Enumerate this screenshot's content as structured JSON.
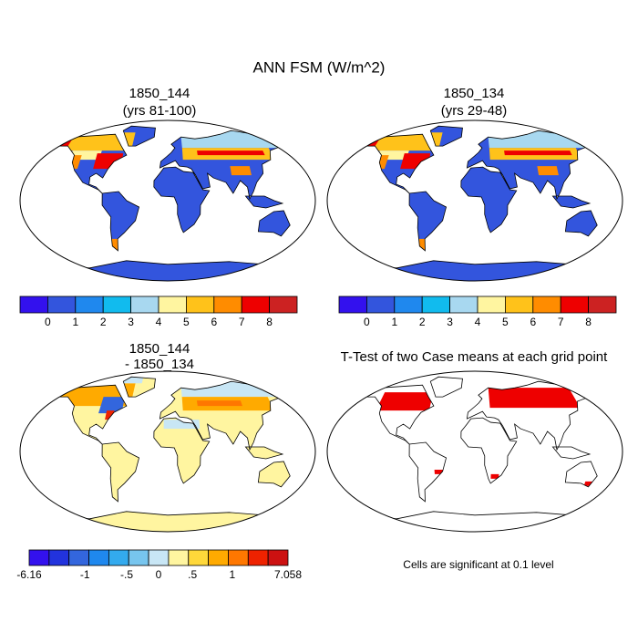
{
  "title": "ANN FSM (W/m^2)",
  "panels": [
    {
      "title": [
        "1850_144",
        "(yrs 81-100)"
      ],
      "style": "field",
      "colorbar": {
        "colors": [
          "#3311ee",
          "#3355dd",
          "#1f88ee",
          "#11bbee",
          "#a8d8f0",
          "#fff5a0",
          "#ffc21a",
          "#ff8c00",
          "#ee0000",
          "#cc2222"
        ],
        "labels": [
          0,
          1,
          2,
          3,
          4,
          5,
          6,
          7,
          8
        ]
      }
    },
    {
      "title": [
        "1850_134",
        "(yrs 29-48)"
      ],
      "style": "field",
      "colorbar": {
        "colors": [
          "#3311ee",
          "#3355dd",
          "#1f88ee",
          "#11bbee",
          "#a8d8f0",
          "#fff5a0",
          "#ffc21a",
          "#ff8c00",
          "#ee0000",
          "#cc2222"
        ],
        "labels": [
          0,
          1,
          2,
          3,
          4,
          5,
          6,
          7,
          8
        ]
      }
    },
    {
      "title": [
        "1850_144",
        "- 1850_134"
      ],
      "style": "difference",
      "colorbar": {
        "colors": [
          "#3311ee",
          "#2233dd",
          "#3366dd",
          "#1f88ee",
          "#33aaee",
          "#77c5ee",
          "#c8e6f5",
          "#fff5a0",
          "#ffd83a",
          "#ffaa00",
          "#ff7700",
          "#ee2200",
          "#cc1111"
        ],
        "labels": [
          -6.16,
          "-1",
          {
            "value": -0.5,
            "label": "-.5"
          },
          0,
          {
            "value": 0.5,
            "label": ".5"
          },
          1,
          7.058
        ]
      }
    },
    {
      "title": [
        "T-Test of two Case means at each grid point"
      ],
      "style": "significance",
      "note": "Cells are significant at 0.1 level",
      "color": "#ee0000"
    }
  ]
}
